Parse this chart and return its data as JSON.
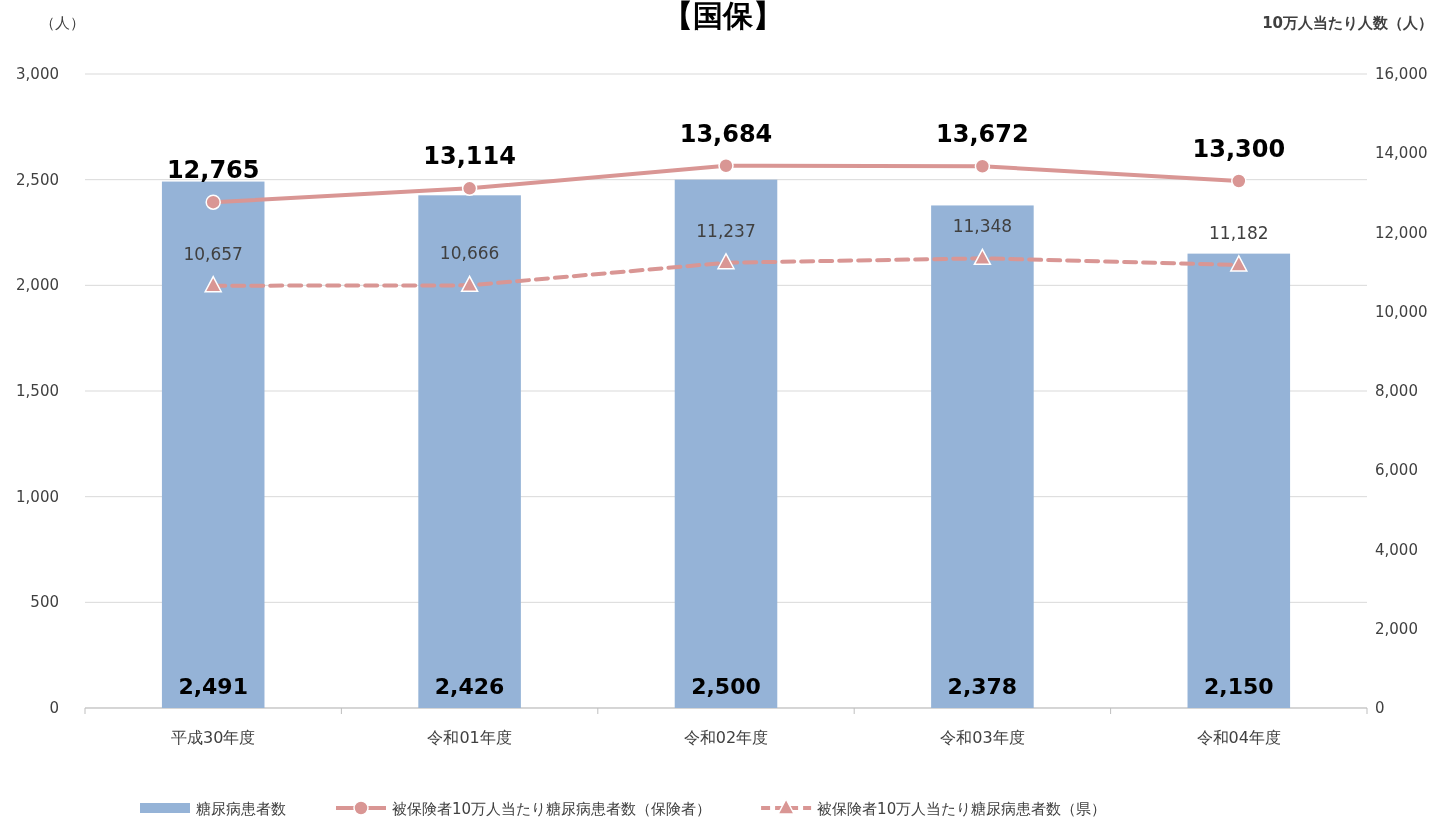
{
  "chart_data": {
    "type": "bar",
    "title": "【国保】",
    "ylabel": "（人）",
    "y2label": "10万人当たり人数（人）",
    "categories": [
      "平成30年度",
      "令和01年度",
      "令和02年度",
      "令和03年度",
      "令和04年度"
    ],
    "series": [
      {
        "name": "糖尿病患者数",
        "type": "bar",
        "color": "#95b3d7",
        "values": [
          2491,
          2426,
          2500,
          2378,
          2150
        ],
        "value_labels": [
          "2,491",
          "2,426",
          "2,500",
          "2,378",
          "2,150"
        ]
      },
      {
        "name": "被保険者10万人当たり糖尿病患者数（保険者）",
        "type": "line",
        "axis": "y2",
        "color": "#d99694",
        "marker": "circle",
        "line_style": "solid",
        "values": [
          12765,
          13114,
          13684,
          13672,
          13300
        ],
        "value_labels": [
          "12,765",
          "13,114",
          "13,684",
          "13,672",
          "13,300"
        ]
      },
      {
        "name": "被保険者10万人当たり糖尿病患者数（県）",
        "type": "line",
        "axis": "y2",
        "color": "#d99694",
        "marker": "triangle",
        "line_style": "dashed",
        "values": [
          10657,
          10666,
          11237,
          11348,
          11182
        ],
        "value_labels": [
          "10,657",
          "10,666",
          "11,237",
          "11,348",
          "11,182"
        ]
      }
    ],
    "ylim": [
      0,
      3000
    ],
    "yticks": [
      {
        "value": 0,
        "label": "0"
      },
      {
        "value": 500,
        "label": "500"
      },
      {
        "value": 1000,
        "label": "1,000"
      },
      {
        "value": 1500,
        "label": "1,500"
      },
      {
        "value": 2000,
        "label": "2,000"
      },
      {
        "value": 2500,
        "label": "2,500"
      },
      {
        "value": 3000,
        "label": "3,000"
      }
    ],
    "y2lim": [
      0,
      16000
    ],
    "y2ticks": [
      {
        "value": 0,
        "label": "0"
      },
      {
        "value": 2000,
        "label": "2,000"
      },
      {
        "value": 4000,
        "label": "4,000"
      },
      {
        "value": 6000,
        "label": "6,000"
      },
      {
        "value": 8000,
        "label": "8,000"
      },
      {
        "value": 10000,
        "label": "10,000"
      },
      {
        "value": 12000,
        "label": "12,000"
      },
      {
        "value": 14000,
        "label": "14,000"
      },
      {
        "value": 16000,
        "label": "16,000"
      }
    ],
    "grid": "y",
    "legend": "bottom"
  }
}
